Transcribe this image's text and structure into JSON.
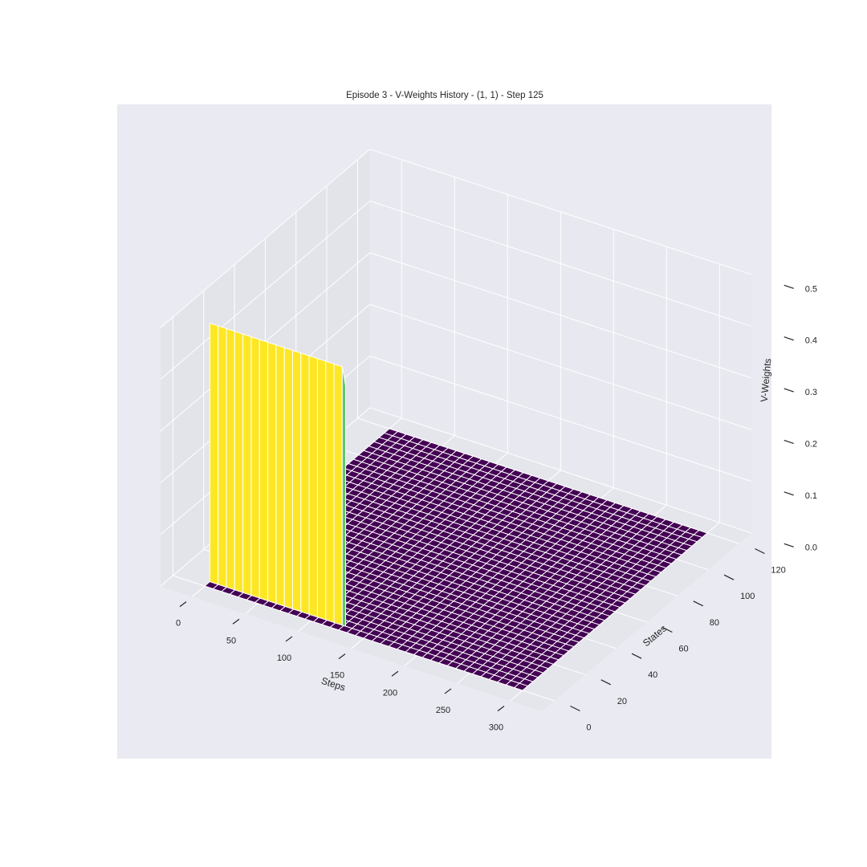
{
  "chart_data": {
    "type": "surface-3d",
    "title": "Episode 3 - V-Weights History - (1, 1) - Step 125",
    "xlabel": "Steps",
    "ylabel": "States",
    "zlabel": "V-Weights",
    "xlim": [
      0,
      300
    ],
    "ylim": [
      0,
      120
    ],
    "zlim": [
      0,
      0.5
    ],
    "xticks": [
      "0",
      "50",
      "100",
      "150",
      "200",
      "250",
      "300"
    ],
    "yticks": [
      "0",
      "20",
      "40",
      "60",
      "80",
      "100",
      "120"
    ],
    "zticks": [
      "0.0",
      "0.1",
      "0.2",
      "0.3",
      "0.4",
      "0.5"
    ],
    "grid": true,
    "colormap": "viridis",
    "surface": {
      "description_values": [
        {
          "steps": [
            0,
            125
          ],
          "state": 0,
          "v_weight": 0.5
        },
        {
          "steps": [
            125,
            300
          ],
          "states": [
            0,
            120
          ],
          "v_weight": 0.0
        },
        {
          "steps": [
            0,
            300
          ],
          "states": [
            0,
            120
          ],
          "v_weight": 0.0
        }
      ],
      "step_grid": [
        0,
        300,
        12
      ],
      "state_grid": [
        0,
        120,
        4
      ]
    }
  },
  "colors": {
    "pane": "#e8e8f0",
    "pane_side": "#e3e3ea",
    "grid": "#ffffff",
    "surface_high": "#fde725",
    "surface_mid": "#5ec962",
    "surface_low": "#440154",
    "background": "#eaeaf2"
  }
}
